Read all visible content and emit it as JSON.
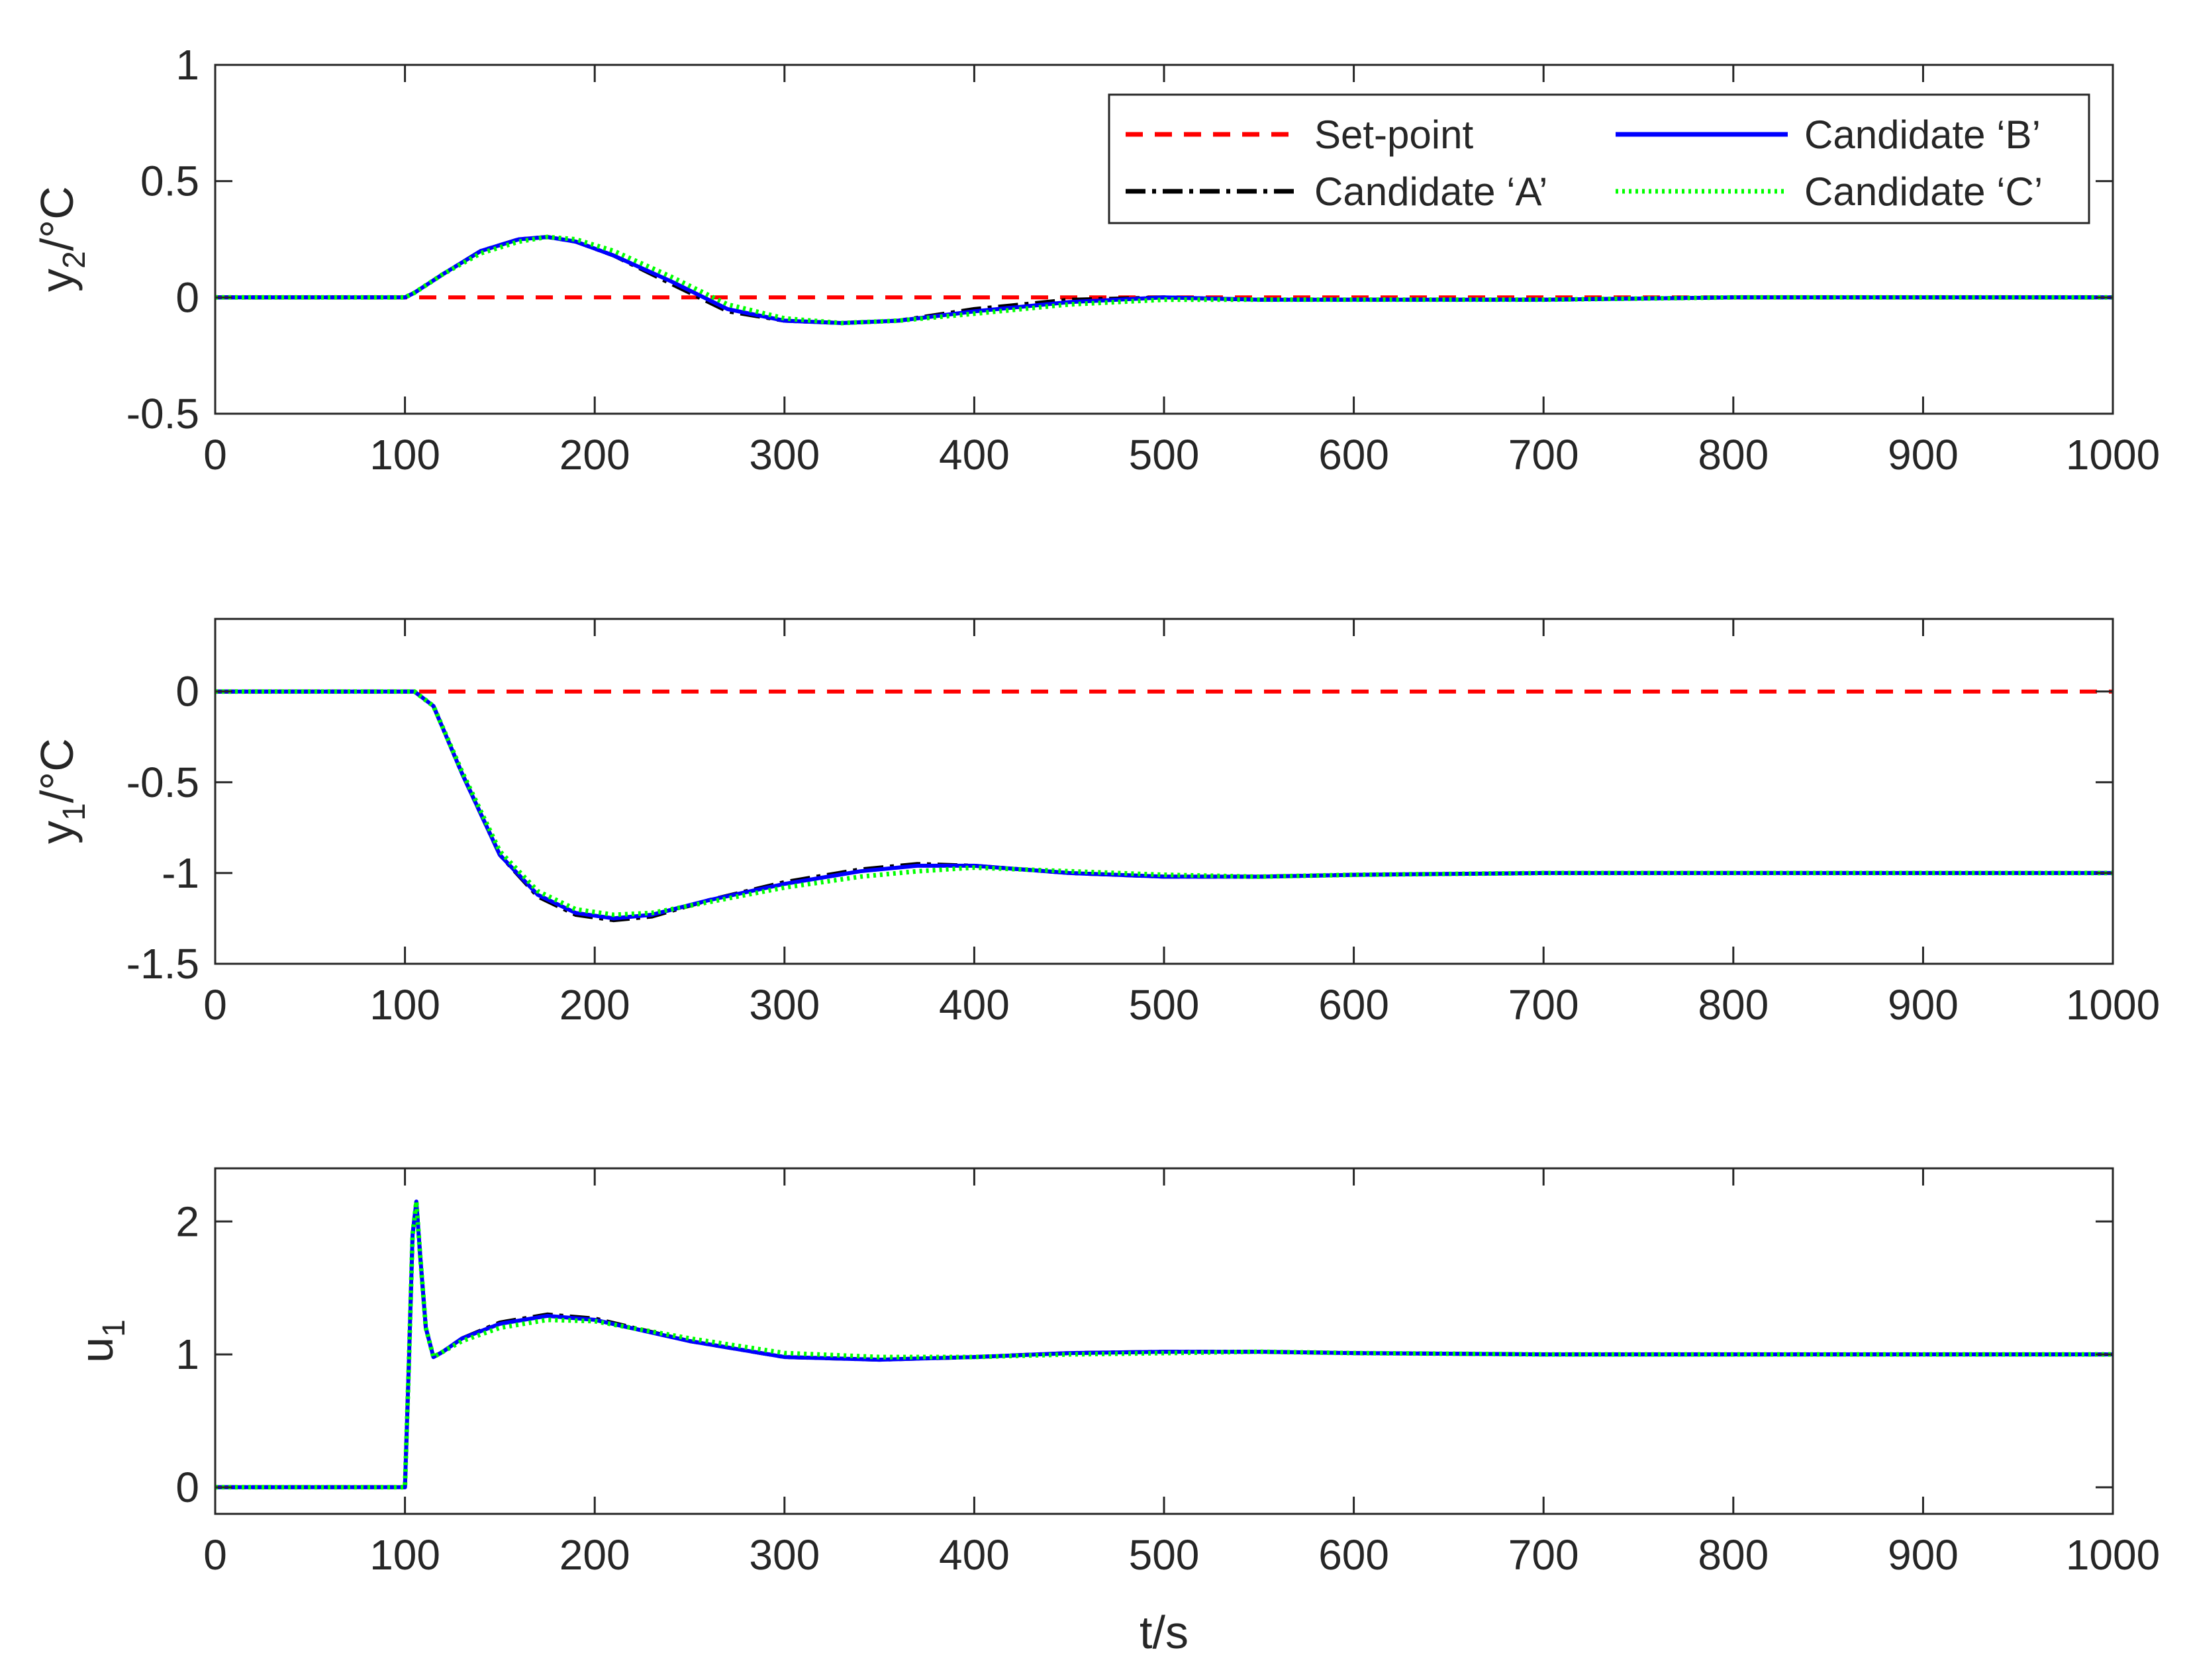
{
  "chart_data": [
    {
      "type": "line",
      "xlim": [
        0,
        1000
      ],
      "ylim": [
        -0.5,
        1
      ],
      "xticks": [
        "0",
        "100",
        "200",
        "300",
        "400",
        "500",
        "600",
        "700",
        "800",
        "900",
        "1000"
      ],
      "yticks": [
        "-0.5",
        "0",
        "0.5",
        "1"
      ],
      "ytick_values": [
        -0.5,
        0,
        0.5,
        1
      ],
      "ylabel": "y",
      "ylabel_sub": "2",
      "ylabel_rest": "/°C",
      "legend": {
        "position": "top-right",
        "entries": [
          "Set-point",
          "Candidate ‘A’",
          "Candidate ‘B’",
          "Candidate ‘C’"
        ]
      },
      "x": [
        0,
        100,
        105,
        120,
        140,
        160,
        175,
        190,
        210,
        240,
        270,
        300,
        330,
        360,
        400,
        450,
        500,
        550,
        600,
        650,
        700,
        800,
        900,
        1000
      ],
      "series": [
        {
          "name": "Set-point",
          "color": "#ff0000",
          "style": "dashed",
          "values": [
            0,
            0,
            0,
            0,
            0,
            0,
            0,
            0,
            0,
            0,
            0,
            0,
            0,
            0,
            0,
            0,
            0,
            0,
            0,
            0,
            0,
            0,
            0,
            0
          ]
        },
        {
          "name": "Candidate ‘A’",
          "color": "#000000",
          "style": "dashdot",
          "values": [
            0,
            0,
            0.02,
            0.1,
            0.2,
            0.25,
            0.26,
            0.24,
            0.18,
            0.06,
            -0.06,
            -0.1,
            -0.11,
            -0.1,
            -0.05,
            -0.01,
            0.0,
            -0.01,
            -0.01,
            -0.01,
            -0.01,
            0,
            0,
            0
          ]
        },
        {
          "name": "Candidate ‘B’",
          "color": "#0000ff",
          "style": "solid",
          "values": [
            0,
            0,
            0.02,
            0.1,
            0.2,
            0.25,
            0.26,
            0.24,
            0.18,
            0.07,
            -0.05,
            -0.1,
            -0.11,
            -0.1,
            -0.06,
            -0.02,
            0.0,
            -0.01,
            -0.01,
            -0.01,
            -0.01,
            0,
            0,
            0
          ]
        },
        {
          "name": "Candidate ‘C’",
          "color": "#00ff00",
          "style": "dotted",
          "values": [
            0,
            0,
            0.02,
            0.1,
            0.19,
            0.24,
            0.26,
            0.25,
            0.2,
            0.09,
            -0.03,
            -0.09,
            -0.11,
            -0.1,
            -0.07,
            -0.03,
            -0.01,
            -0.01,
            -0.01,
            -0.01,
            -0.01,
            0,
            0,
            0
          ]
        }
      ]
    },
    {
      "type": "line",
      "xlim": [
        0,
        1000
      ],
      "ylim": [
        -1.5,
        0.4
      ],
      "xticks": [
        "0",
        "100",
        "200",
        "300",
        "400",
        "500",
        "600",
        "700",
        "800",
        "900",
        "1000"
      ],
      "yticks": [
        "-1.5",
        "-1",
        "-0.5",
        "0"
      ],
      "ytick_values": [
        -1.5,
        -1,
        -0.5,
        0
      ],
      "ylabel": "y",
      "ylabel_sub": "1",
      "ylabel_rest": "/°C",
      "x": [
        0,
        100,
        105,
        115,
        130,
        150,
        170,
        190,
        210,
        230,
        260,
        300,
        340,
        370,
        400,
        450,
        500,
        550,
        600,
        700,
        800,
        900,
        1000
      ],
      "series": [
        {
          "name": "Set-point",
          "color": "#ff0000",
          "style": "dashed",
          "values": [
            0,
            0,
            0,
            0,
            0,
            0,
            0,
            0,
            0,
            0,
            0,
            0,
            0,
            0,
            0,
            0,
            0,
            0,
            0,
            0,
            0,
            0,
            0
          ]
        },
        {
          "name": "Candidate ‘A’",
          "color": "#000000",
          "style": "dashdot",
          "values": [
            0,
            0,
            0,
            -0.08,
            -0.45,
            -0.9,
            -1.13,
            -1.23,
            -1.26,
            -1.24,
            -1.15,
            -1.05,
            -0.98,
            -0.95,
            -0.96,
            -1.0,
            -1.02,
            -1.02,
            -1.01,
            -1.0,
            -1.0,
            -1.0,
            -1.0
          ]
        },
        {
          "name": "Candidate ‘B’",
          "color": "#0000ff",
          "style": "solid",
          "values": [
            0,
            0,
            0,
            -0.08,
            -0.45,
            -0.9,
            -1.12,
            -1.22,
            -1.25,
            -1.23,
            -1.15,
            -1.06,
            -0.99,
            -0.96,
            -0.96,
            -1.0,
            -1.02,
            -1.02,
            -1.01,
            -1.0,
            -1.0,
            -1.0,
            -1.0
          ]
        },
        {
          "name": "Candidate ‘C’",
          "color": "#00ff00",
          "style": "dotted",
          "values": [
            0,
            0,
            0,
            -0.08,
            -0.44,
            -0.88,
            -1.1,
            -1.2,
            -1.23,
            -1.22,
            -1.16,
            -1.08,
            -1.02,
            -0.99,
            -0.97,
            -0.99,
            -1.01,
            -1.02,
            -1.01,
            -1.0,
            -1.0,
            -1.0,
            -1.0
          ]
        }
      ]
    },
    {
      "type": "line",
      "xlim": [
        0,
        1000
      ],
      "ylim": [
        -0.2,
        2.4
      ],
      "xticks": [
        "0",
        "100",
        "200",
        "300",
        "400",
        "500",
        "600",
        "700",
        "800",
        "900",
        "1000"
      ],
      "yticks": [
        "0",
        "1",
        "2"
      ],
      "ytick_values": [
        0,
        1,
        2
      ],
      "ylabel": "u",
      "ylabel_sub": "1",
      "ylabel_rest": "",
      "xlabel": "t/s",
      "x": [
        0,
        100,
        102,
        104,
        106,
        108,
        111,
        115,
        120,
        130,
        150,
        175,
        200,
        250,
        300,
        350,
        400,
        450,
        500,
        550,
        600,
        700,
        800,
        900,
        1000
      ],
      "series": [
        {
          "name": "Candidate ‘A’",
          "color": "#000000",
          "style": "dashdot",
          "values": [
            0,
            0,
            0.9,
            1.9,
            2.15,
            1.75,
            1.2,
            0.98,
            1.02,
            1.12,
            1.24,
            1.3,
            1.27,
            1.1,
            0.98,
            0.96,
            0.98,
            1.01,
            1.02,
            1.02,
            1.01,
            1.0,
            1.0,
            1.0,
            1.0
          ]
        },
        {
          "name": "Candidate ‘B’",
          "color": "#0000ff",
          "style": "solid",
          "values": [
            0,
            0,
            0.9,
            1.9,
            2.15,
            1.75,
            1.2,
            0.98,
            1.02,
            1.12,
            1.23,
            1.29,
            1.26,
            1.1,
            0.98,
            0.96,
            0.98,
            1.01,
            1.02,
            1.02,
            1.01,
            1.0,
            1.0,
            1.0,
            1.0
          ]
        },
        {
          "name": "Candidate ‘C’",
          "color": "#00ff00",
          "style": "dotted",
          "values": [
            0,
            0,
            0.9,
            1.9,
            2.15,
            1.75,
            1.2,
            0.98,
            1.02,
            1.1,
            1.2,
            1.26,
            1.25,
            1.12,
            1.01,
            0.98,
            0.98,
            1.0,
            1.01,
            1.02,
            1.01,
            1.0,
            1.0,
            1.0,
            1.0
          ]
        }
      ]
    }
  ]
}
